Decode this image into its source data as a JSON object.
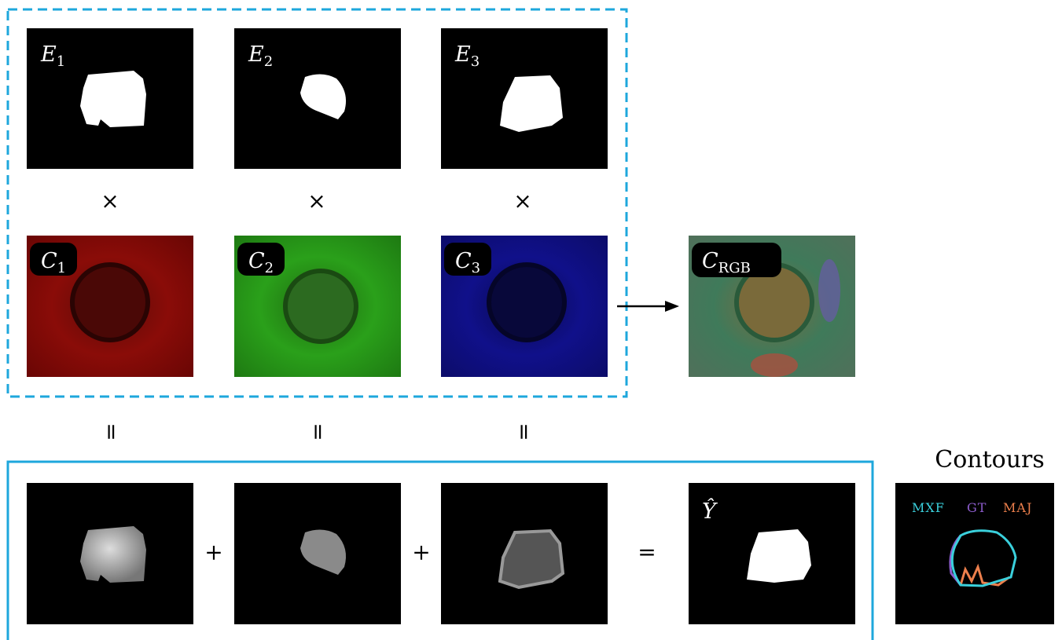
{
  "experts": [
    {
      "label": "E",
      "sub": "1"
    },
    {
      "label": "E",
      "sub": "2"
    },
    {
      "label": "E",
      "sub": "3"
    }
  ],
  "channels": [
    {
      "label": "C",
      "sub": "1"
    },
    {
      "label": "C",
      "sub": "2"
    },
    {
      "label": "C",
      "sub": "3"
    }
  ],
  "multiply_ops": [
    "×",
    "×",
    "×"
  ],
  "equal_ops": [
    "=",
    "=",
    "="
  ],
  "combined": {
    "label": "C",
    "sub": "RGB"
  },
  "sum_ops": [
    "+",
    "+",
    "="
  ],
  "result": {
    "label": "Ŷ"
  },
  "contours": {
    "title": "Contours",
    "legend": [
      {
        "name": "MXF",
        "color": "#3ad0dc"
      },
      {
        "name": "GT",
        "color": "#8c5ccc"
      },
      {
        "name": "MAJ",
        "color": "#ec7f4c"
      }
    ]
  }
}
